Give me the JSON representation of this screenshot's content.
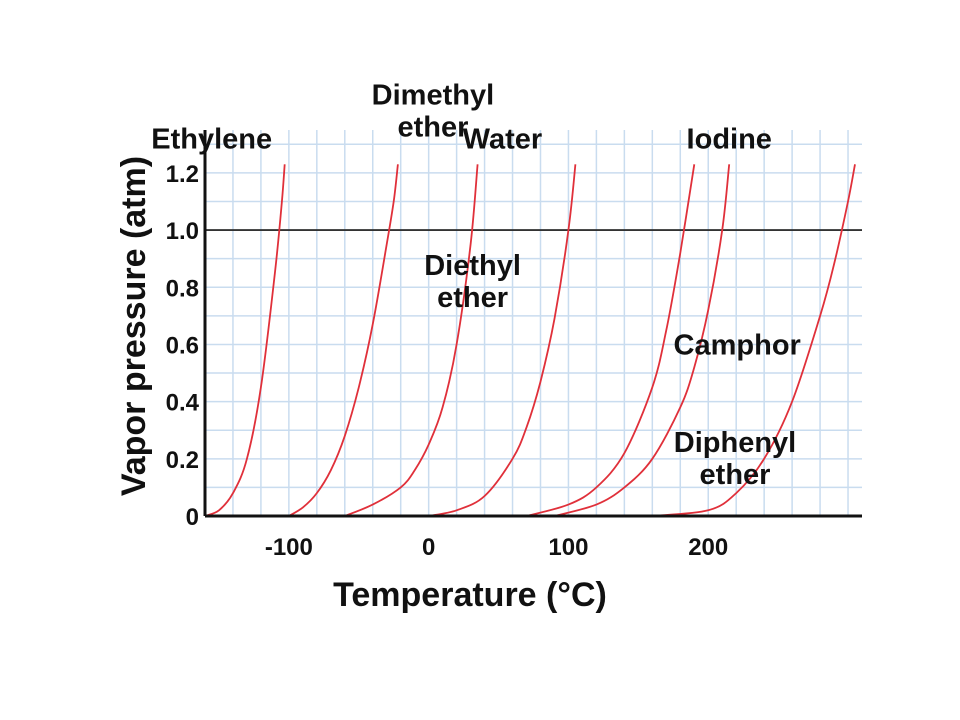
{
  "chart_data": {
    "type": "line",
    "title": "",
    "xlabel": "Temperature (°C)",
    "ylabel": "Vapor pressure (atm)",
    "xlim": [
      -160,
      310
    ],
    "ylim": [
      0,
      1.35
    ],
    "x_ticks": [
      {
        "value": -100,
        "label": "-100"
      },
      {
        "value": 0,
        "label": "0"
      },
      {
        "value": 100,
        "label": "100"
      },
      {
        "value": 200,
        "label": "200"
      }
    ],
    "y_ticks": [
      {
        "value": 0,
        "label": "0"
      },
      {
        "value": 0.2,
        "label": "0.2"
      },
      {
        "value": 0.4,
        "label": "0.4"
      },
      {
        "value": 0.6,
        "label": "0.6"
      },
      {
        "value": 0.8,
        "label": "0.8"
      },
      {
        "value": 1.0,
        "label": "1.0"
      },
      {
        "value": 1.2,
        "label": "1.2"
      }
    ],
    "reference_line": {
      "y": 1.0,
      "color": "#333333"
    },
    "grid": true,
    "grid_color": "#c9dcef",
    "series_color": "#e0303a",
    "series": [
      {
        "name": "Ethylene",
        "label_lines": [
          "Ethylene"
        ],
        "x": [
          -160,
          -150,
          -140,
          -130,
          -120,
          -110,
          -105,
          -103
        ],
        "y": [
          0,
          0.02,
          0.08,
          0.2,
          0.45,
          0.85,
          1.1,
          1.23
        ]
      },
      {
        "name": "Dimethyl ether",
        "label_lines": [
          "Dimethyl",
          "ether"
        ],
        "x": [
          -100,
          -90,
          -80,
          -70,
          -60,
          -50,
          -40,
          -30,
          -25,
          -22
        ],
        "y": [
          0,
          0.03,
          0.08,
          0.16,
          0.28,
          0.45,
          0.67,
          0.95,
          1.1,
          1.23
        ]
      },
      {
        "name": "Diethyl ether",
        "label_lines": [
          "Diethyl",
          "ether"
        ],
        "x": [
          -60,
          -40,
          -20,
          -10,
          0,
          10,
          20,
          30,
          35
        ],
        "y": [
          0,
          0.04,
          0.1,
          0.16,
          0.25,
          0.38,
          0.6,
          0.95,
          1.23
        ]
      },
      {
        "name": "Water",
        "label_lines": [
          "Water"
        ],
        "x": [
          0,
          20,
          40,
          60,
          70,
          80,
          90,
          100,
          105
        ],
        "y": [
          0,
          0.02,
          0.07,
          0.2,
          0.31,
          0.47,
          0.69,
          1.0,
          1.23
        ]
      },
      {
        "name": "Iodine",
        "label_lines": [
          "Iodine"
        ],
        "x": [
          70,
          100,
          120,
          140,
          160,
          170,
          180,
          190
        ],
        "y": [
          0,
          0.04,
          0.1,
          0.22,
          0.45,
          0.65,
          0.92,
          1.23
        ]
      },
      {
        "name": "Camphor",
        "label_lines": [
          "Camphor"
        ],
        "x": [
          90,
          120,
          140,
          160,
          180,
          190,
          200,
          210,
          215
        ],
        "y": [
          0,
          0.04,
          0.1,
          0.2,
          0.38,
          0.52,
          0.72,
          1.0,
          1.23
        ]
      },
      {
        "name": "Diphenyl ether",
        "label_lines": [
          "Diphenyl",
          "ether"
        ],
        "x": [
          160,
          200,
          220,
          240,
          260,
          280,
          290,
          300,
          305
        ],
        "y": [
          0,
          0.02,
          0.08,
          0.2,
          0.4,
          0.7,
          0.88,
          1.1,
          1.23
        ]
      }
    ],
    "annotation_placement": {
      "Ethylene": "left-of-curve-top",
      "Dimethyl ether": "above-curve-top",
      "Diethyl ether": "right-of-curve-middle",
      "Water": "left-of-curve-top",
      "Iodine": "right-of-curve-top",
      "Camphor": "right-of-curve-middle",
      "Diphenyl ether": "left-of-curve-bottom"
    }
  }
}
